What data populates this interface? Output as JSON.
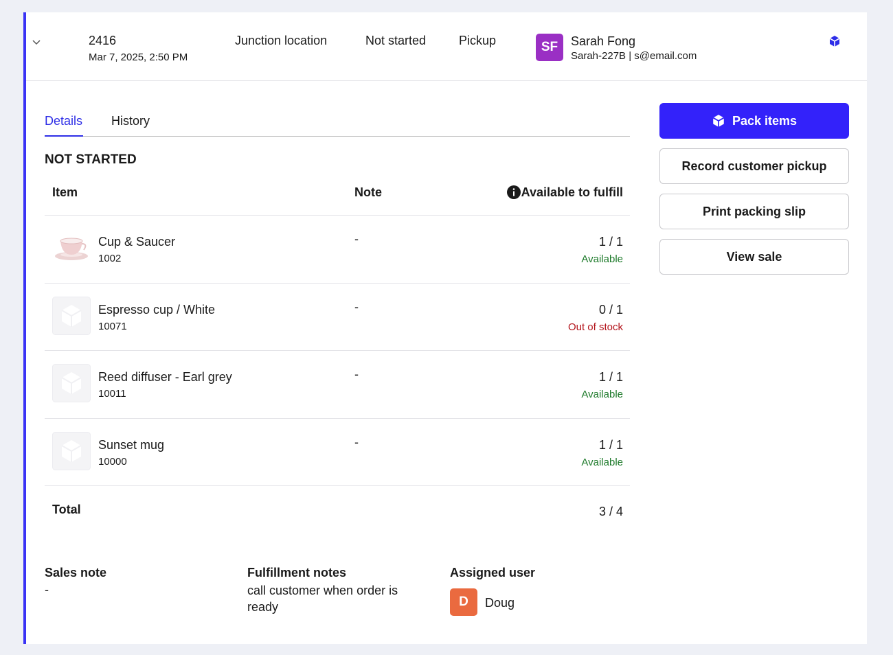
{
  "header": {
    "order_number": "2416",
    "date": "Mar 7, 2025, 2:50 PM",
    "location": "Junction location",
    "status": "Not started",
    "method": "Pickup",
    "customer": {
      "initials": "SF",
      "name": "Sarah Fong",
      "details": "Sarah-227B | s@email.com"
    }
  },
  "tabs": [
    "Details",
    "History"
  ],
  "section_title": "NOT STARTED",
  "table": {
    "columns": [
      "Item",
      "Note",
      "Available to fulfill"
    ],
    "rows": [
      {
        "name": "Cup & Saucer",
        "sku": "1002",
        "note": "-",
        "quantity": "1 / 1",
        "availability": "Available",
        "availability_color": "#1d7a2a"
      },
      {
        "name": "Espresso cup / White",
        "sku": "10071",
        "note": "-",
        "quantity": "0 / 1",
        "availability": "Out of stock",
        "availability_color": "#b3141b"
      },
      {
        "name": "Reed diffuser - Earl grey",
        "sku": "10011",
        "note": "-",
        "quantity": "1 / 1",
        "availability": "Available",
        "availability_color": "#1d7a2a"
      },
      {
        "name": "Sunset mug",
        "sku": "10000",
        "note": "-",
        "quantity": "1 / 1",
        "availability": "Available",
        "availability_color": "#1d7a2a"
      }
    ],
    "total_label": "Total",
    "total": "3 / 4"
  },
  "actions": [
    "Pack items",
    "Record customer pickup",
    "Print packing slip",
    "View sale"
  ],
  "footer": {
    "sales_note": {
      "label": "Sales note",
      "value": "-"
    },
    "fulfillment_notes": {
      "label": "Fulfillment notes",
      "value": "call customer when order is ready"
    },
    "assigned_user": {
      "label": "Assigned user",
      "initials": "D",
      "name": "Doug"
    }
  }
}
